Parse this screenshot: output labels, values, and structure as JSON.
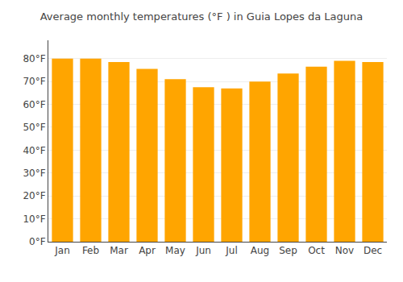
{
  "chart_data": {
    "type": "bar",
    "title": "Average monthly temperatures (°F ) in Guia Lopes da Laguna",
    "categories": [
      "Jan",
      "Feb",
      "Mar",
      "Apr",
      "May",
      "Jun",
      "Jul",
      "Aug",
      "Sep",
      "Oct",
      "Nov",
      "Dec"
    ],
    "values": [
      80,
      80,
      78.5,
      75.5,
      71,
      67.5,
      67,
      70,
      73.5,
      76.5,
      79,
      78.5
    ],
    "color": "#FFA500",
    "ylim": [
      0,
      88
    ],
    "yticks": [
      {
        "value": 0,
        "label": "0°F"
      },
      {
        "value": 10,
        "label": "10°F"
      },
      {
        "value": 20,
        "label": "20°F"
      },
      {
        "value": 30,
        "label": "30°F"
      },
      {
        "value": 40,
        "label": "40°F"
      },
      {
        "value": 50,
        "label": "50°F"
      },
      {
        "value": 60,
        "label": "60°F"
      },
      {
        "value": 70,
        "label": "70°F"
      },
      {
        "value": 80,
        "label": "80°F"
      }
    ],
    "grid": true
  }
}
